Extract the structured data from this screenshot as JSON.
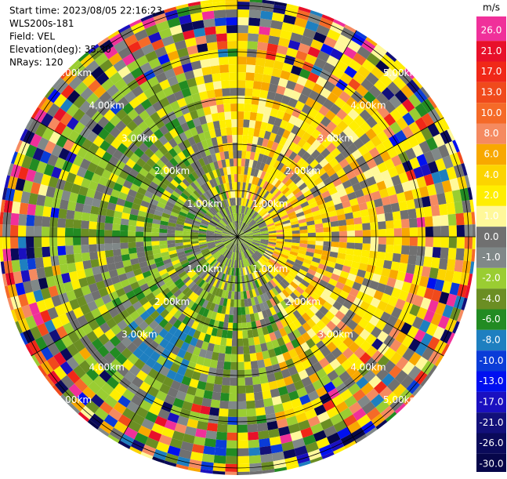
{
  "header": {
    "lines": [
      "Start time: 2023/08/05 22:16:23",
      "WLS200s-181",
      "Field: VEL",
      "Elevation(deg): 35.30",
      "NRays: 120"
    ]
  },
  "range_rings": {
    "labels": [
      "1.00km",
      "2.00km",
      "3.00km",
      "4.00km",
      "5.00km"
    ]
  },
  "colorbar": {
    "unit": "m/s",
    "levels": [
      {
        "value": 26,
        "label": "26.0"
      },
      {
        "value": 21,
        "label": "21.0"
      },
      {
        "value": 17,
        "label": "17.0"
      },
      {
        "value": 13,
        "label": "13.0"
      },
      {
        "value": 10,
        "label": "10.0"
      },
      {
        "value": 8,
        "label": "8.0"
      },
      {
        "value": 6,
        "label": "6.0"
      },
      {
        "value": 4,
        "label": "4.0"
      },
      {
        "value": 2,
        "label": "2.0"
      },
      {
        "value": 1,
        "label": "1.0"
      },
      {
        "value": 0,
        "label": "0.0"
      },
      {
        "value": -1,
        "label": "-1.0"
      },
      {
        "value": -2,
        "label": "-2.0"
      },
      {
        "value": -4,
        "label": "-4.0"
      },
      {
        "value": -6,
        "label": "-6.0"
      },
      {
        "value": -8,
        "label": "-8.0"
      },
      {
        "value": -10,
        "label": "-10.0"
      },
      {
        "value": -13,
        "label": "-13.0"
      },
      {
        "value": -17,
        "label": "-17.0"
      },
      {
        "value": -21,
        "label": "-21.0"
      },
      {
        "value": -26,
        "label": "-26.0"
      },
      {
        "value": -30,
        "label": "-30.0"
      }
    ],
    "colors": [
      "#f0309a",
      "#e8102a",
      "#f02818",
      "#f04a1c",
      "#f56a28",
      "#f58a60",
      "#f8a800",
      "#fcd400",
      "#ffee00",
      "#fff89a",
      "#707070",
      "#808888",
      "#9acd32",
      "#6b8e23",
      "#228b22",
      "#1e7fc0",
      "#0a3cd8",
      "#0010f0",
      "#1a10c0",
      "#12107a",
      "#0a0a5a",
      "#06064a"
    ]
  }
}
